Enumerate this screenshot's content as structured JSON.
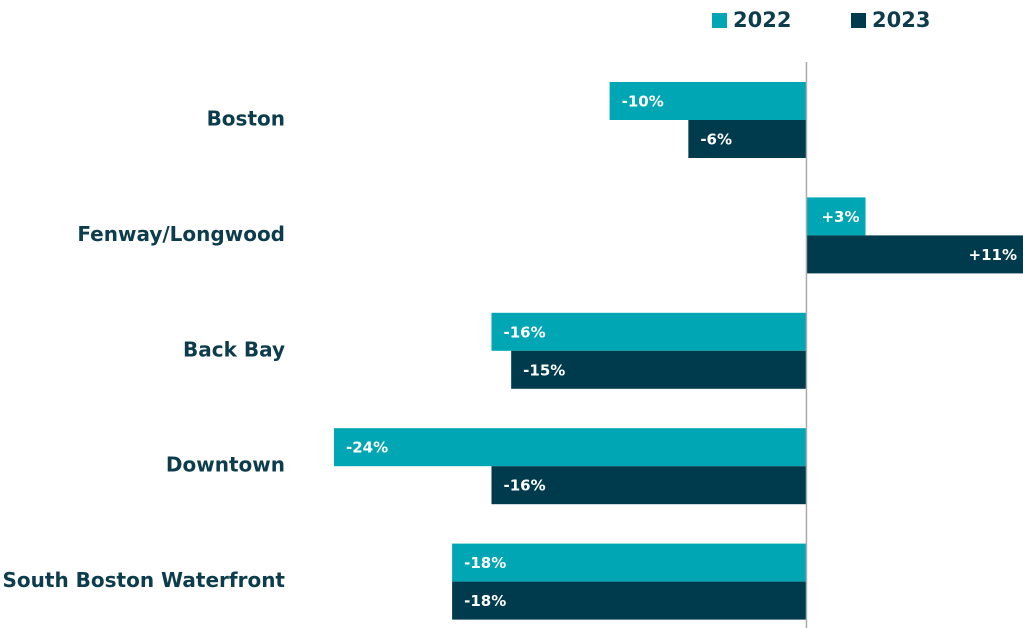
{
  "chart_data": {
    "type": "hbar",
    "categories": [
      "Boston",
      "Fenway/Longwood",
      "Back Bay",
      "Downtown",
      "South Boston Waterfront"
    ],
    "series": [
      {
        "name": "2022",
        "color": "#00a6b4",
        "values": [
          -10,
          3,
          -16,
          -24,
          -18
        ],
        "value_labels": [
          "-10%",
          "+3%",
          "-16%",
          "-24%",
          "-18%"
        ]
      },
      {
        "name": "2023",
        "color": "#003a4d",
        "values": [
          -6,
          11,
          -15,
          -16,
          -18
        ],
        "value_labels": [
          "-6%",
          "+11%",
          "-15%",
          "-16%",
          "-18%"
        ]
      }
    ],
    "xlim": [
      -24,
      11
    ]
  }
}
